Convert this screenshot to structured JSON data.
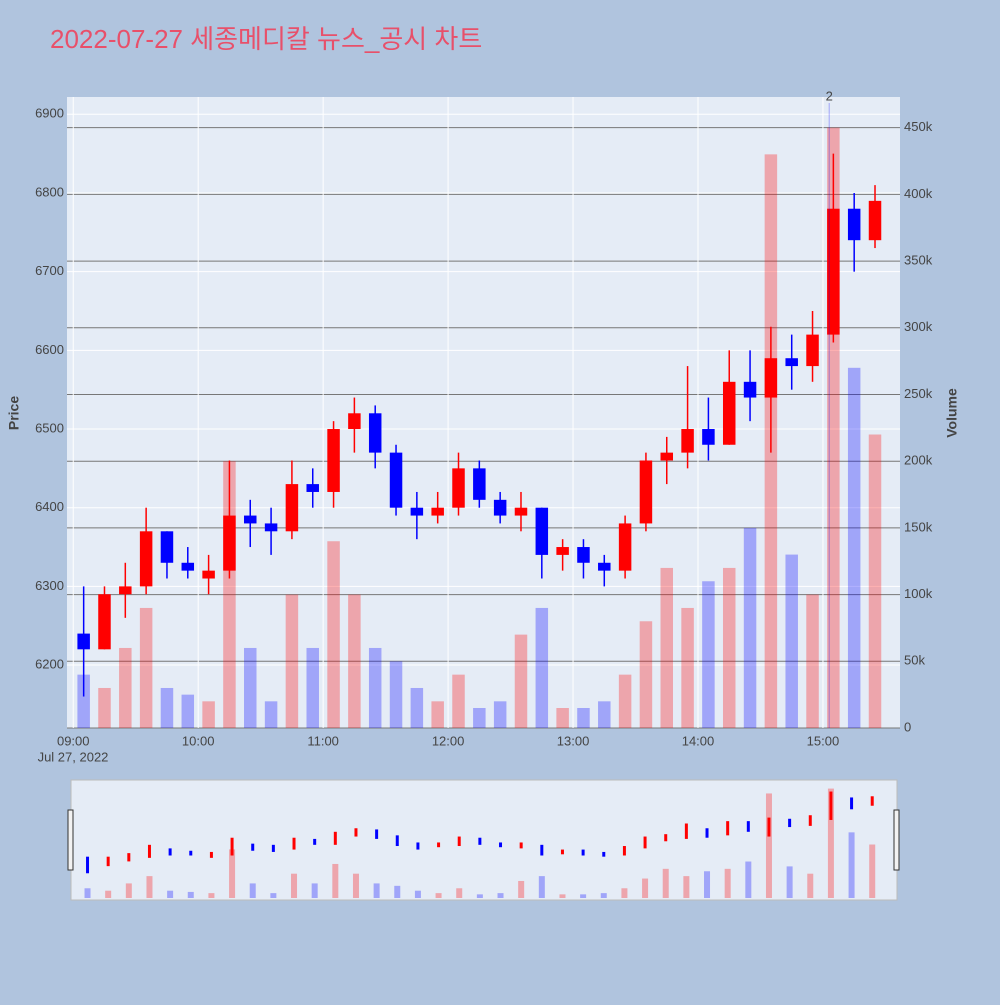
{
  "chart_data": {
    "type": "candlestick",
    "title": "2022-07-27 세종메디칼 뉴스_공시 차트",
    "ylabel": "Price",
    "y2label": "Volume",
    "x_date_label": "Jul 27, 2022",
    "x": [
      "09:00",
      "09:10",
      "09:20",
      "09:30",
      "09:40",
      "09:50",
      "10:00",
      "10:10",
      "10:20",
      "10:30",
      "10:40",
      "10:50",
      "11:00",
      "11:10",
      "11:20",
      "11:30",
      "11:40",
      "11:50",
      "12:00",
      "12:10",
      "12:20",
      "12:30",
      "12:40",
      "12:50",
      "13:00",
      "13:10",
      "13:20",
      "13:30",
      "13:40",
      "13:50",
      "14:00",
      "14:10",
      "14:20",
      "14:30",
      "14:40",
      "14:50",
      "15:00",
      "15:10",
      "15:20"
    ],
    "open": [
      6240,
      6220,
      6290,
      6300,
      6370,
      6330,
      6310,
      6320,
      6390,
      6380,
      6370,
      6430,
      6420,
      6500,
      6520,
      6470,
      6400,
      6390,
      6400,
      6450,
      6410,
      6390,
      6400,
      6340,
      6350,
      6330,
      6320,
      6380,
      6460,
      6470,
      6500,
      6480,
      6560,
      6540,
      6590,
      6580,
      6620,
      6780,
      6740
    ],
    "high": [
      6300,
      6300,
      6330,
      6400,
      6370,
      6350,
      6340,
      6460,
      6410,
      6400,
      6460,
      6450,
      6510,
      6540,
      6530,
      6480,
      6420,
      6420,
      6470,
      6460,
      6420,
      6420,
      6400,
      6360,
      6360,
      6340,
      6390,
      6470,
      6490,
      6580,
      6540,
      6600,
      6600,
      6630,
      6620,
      6650,
      6850,
      6800,
      6810
    ],
    "low": [
      6160,
      6220,
      6260,
      6290,
      6310,
      6310,
      6290,
      6310,
      6350,
      6340,
      6360,
      6400,
      6400,
      6470,
      6450,
      6390,
      6360,
      6380,
      6390,
      6400,
      6380,
      6370,
      6310,
      6320,
      6310,
      6300,
      6310,
      6370,
      6430,
      6450,
      6460,
      6480,
      6510,
      6470,
      6550,
      6560,
      6610,
      6700,
      6730
    ],
    "close": [
      6220,
      6290,
      6300,
      6370,
      6330,
      6320,
      6320,
      6390,
      6380,
      6370,
      6430,
      6420,
      6500,
      6520,
      6470,
      6400,
      6390,
      6400,
      6450,
      6410,
      6390,
      6400,
      6340,
      6350,
      6330,
      6320,
      6380,
      6460,
      6470,
      6500,
      6480,
      6560,
      6540,
      6590,
      6580,
      6620,
      6780,
      6740,
      6790
    ],
    "volume": [
      40000,
      30000,
      60000,
      90000,
      30000,
      25000,
      20000,
      200000,
      60000,
      20000,
      100000,
      60000,
      140000,
      100000,
      60000,
      50000,
      30000,
      20000,
      40000,
      15000,
      20000,
      70000,
      90000,
      15000,
      15000,
      20000,
      40000,
      80000,
      120000,
      90000,
      110000,
      120000,
      150000,
      430000,
      130000,
      100000,
      450000,
      270000,
      220000
    ],
    "increasing_color": "#ff0000",
    "decreasing_color": "#0000ff",
    "xlim": [
      "08:57",
      "15:37"
    ],
    "xticks": [
      "09:00",
      "10:00",
      "11:00",
      "12:00",
      "13:00",
      "14:00",
      "15:00"
    ],
    "ylim": [
      6120,
      6922
    ],
    "yticks": [
      6200,
      6300,
      6400,
      6500,
      6600,
      6700,
      6800,
      6900
    ],
    "y2lim": [
      0,
      473000
    ],
    "y2ticks": [
      0,
      {
        "value": 50000,
        "label": "50k"
      },
      {
        "value": 100000,
        "label": "100k"
      },
      {
        "value": 150000,
        "label": "150k"
      },
      {
        "value": 200000,
        "label": "200k"
      },
      {
        "value": 250000,
        "label": "250k"
      },
      {
        "value": 300000,
        "label": "300k"
      },
      {
        "value": 350000,
        "label": "350k"
      },
      {
        "value": 400000,
        "label": "400k"
      },
      {
        "value": 450000,
        "label": "450k"
      }
    ],
    "annotations": [
      {
        "x": "15:03",
        "text": "2"
      }
    ],
    "grid": true,
    "rangeslider": true
  }
}
